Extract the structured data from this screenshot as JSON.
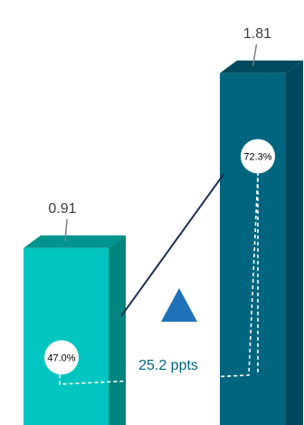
{
  "chart_data": {
    "type": "bar",
    "style": "3d-column",
    "categories": [
      "",
      ""
    ],
    "values": [
      0.91,
      1.81
    ],
    "value_labels": [
      "0.91",
      "1.81"
    ],
    "ylim": [
      0,
      2.0
    ],
    "grid": false,
    "legend": "none",
    "colors": {
      "bar1_front": "#00c5c0",
      "bar1_top": "#00948e",
      "bar1_side": "#00857f",
      "bar2_front": "#006680",
      "bar2_top": "#004a5e",
      "bar2_side": "#00475d",
      "connector": "#1a2f52",
      "triangle": "#1f72b8",
      "delta_text": "#00667f"
    },
    "annotations": {
      "share_1": {
        "value": 47.0,
        "text": "47.0%"
      },
      "share_2": {
        "value": 72.3,
        "text": "72.3%"
      },
      "delta": {
        "value": 25.2,
        "text": "25.2 ppts",
        "direction": "up"
      }
    }
  }
}
